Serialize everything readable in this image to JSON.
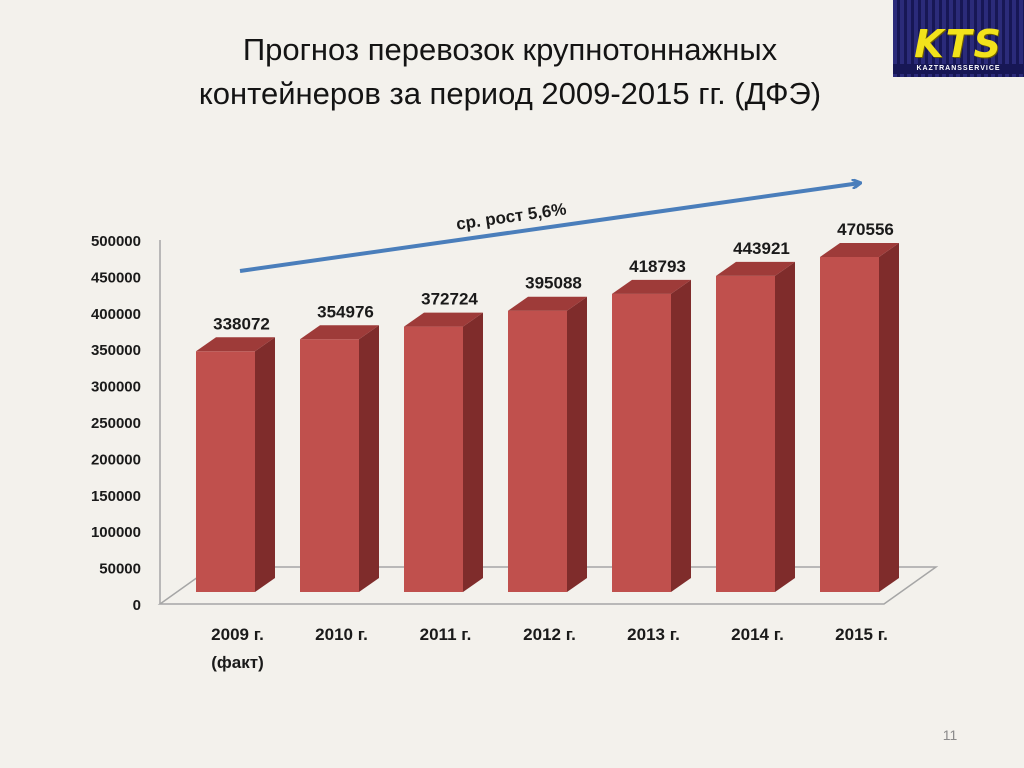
{
  "title_line1": "Прогноз перевозок крупнотоннажных",
  "title_line2": "контейнеров за период 2009-2015 гг. (ДФЭ)",
  "logo": {
    "letters": "KTS",
    "subtitle": "KAZTRANSSERVICE"
  },
  "page_number": "11",
  "colors": {
    "bar_front": "#c0504d",
    "bar_side": "#7f2c2b",
    "bar_top": "#9e3b39",
    "trend_arrow": "#4a7ebb",
    "logo_bg": "#23236b",
    "logo_text": "#f2e21b"
  },
  "chart_data": {
    "type": "bar",
    "categories": [
      "2009 г.",
      "2010 г.",
      "2011 г.",
      "2012 г.",
      "2013 г.",
      "2014 г.",
      "2015 г."
    ],
    "category_sublabels": [
      "(факт)",
      "",
      "",
      "",
      "",
      "",
      ""
    ],
    "values": [
      338072,
      354976,
      372724,
      395088,
      418793,
      443921,
      470556
    ],
    "data_labels": [
      "338072",
      "354976",
      "372724",
      "395088",
      "418793",
      "443921",
      "470556"
    ],
    "ylim": [
      0,
      500000
    ],
    "yticks": [
      0,
      50000,
      100000,
      150000,
      200000,
      250000,
      300000,
      350000,
      400000,
      450000,
      500000
    ],
    "ytick_labels": [
      "0",
      "50000",
      "100000",
      "150000",
      "200000",
      "250000",
      "300000",
      "350000",
      "400000",
      "450000",
      "500000"
    ],
    "annotation": "ср. рост 5,6%",
    "grid": false,
    "legend": "none",
    "style": "3d-column"
  }
}
